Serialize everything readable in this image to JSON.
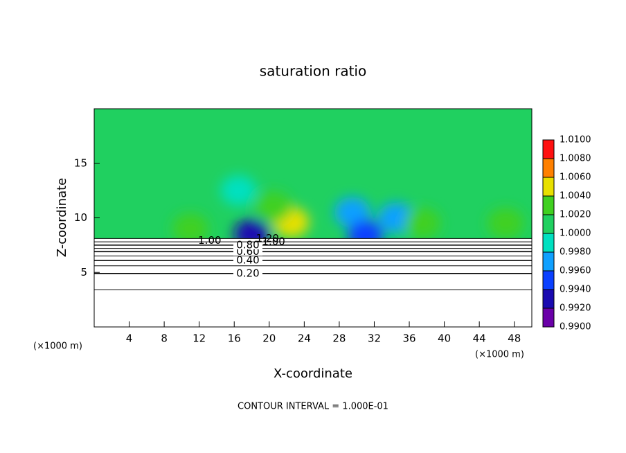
{
  "chart_data": {
    "type": "contour",
    "title": "saturation ratio",
    "xlabel": "X-coordinate",
    "ylabel": "Z-coordinate",
    "x_unit": "(×1000 m)",
    "y_unit": "(×1000 m)",
    "footnote": "CONTOUR INTERVAL = 1.000E-01",
    "xlim": [
      0,
      50
    ],
    "ylim": [
      0,
      20
    ],
    "xticks": [
      4,
      8,
      12,
      16,
      20,
      24,
      28,
      32,
      36,
      40,
      44,
      48
    ],
    "yticks": [
      5,
      10,
      15
    ],
    "background_value": 1.001,
    "colorbar": {
      "lim": [
        0.99,
        1.01
      ],
      "ticks": [
        {
          "value": 0.99,
          "label": "0.9900"
        },
        {
          "value": 0.992,
          "label": "0.9920"
        },
        {
          "value": 0.994,
          "label": "0.9940"
        },
        {
          "value": 0.996,
          "label": "0.9960"
        },
        {
          "value": 0.998,
          "label": "0.9980"
        },
        {
          "value": 1,
          "label": "1.0000"
        },
        {
          "value": 1.002,
          "label": "1.0020"
        },
        {
          "value": 1.004,
          "label": "1.0040"
        },
        {
          "value": 1.006,
          "label": "1.0060"
        },
        {
          "value": 1.008,
          "label": "1.0080"
        },
        {
          "value": 1.01,
          "label": "1.0100"
        }
      ],
      "colors": [
        "#6a00a8",
        "#1a0ab0",
        "#0a40ff",
        "#10a0ff",
        "#00e0c0",
        "#20d060",
        "#40d020",
        "#e8e000",
        "#ff8000",
        "#ff1010",
        "#ff9090"
      ]
    },
    "field_patches": [
      {
        "x": 22.5,
        "z": 9.6,
        "value": 1.005
      },
      {
        "x": 20.5,
        "z": 11,
        "value": 1.003
      },
      {
        "x": 18,
        "z": 8.5,
        "value": 0.993
      },
      {
        "x": 29.5,
        "z": 10.5,
        "value": 0.997
      },
      {
        "x": 34.5,
        "z": 10,
        "value": 0.996
      },
      {
        "x": 16.5,
        "z": 12.5,
        "value": 0.9985
      },
      {
        "x": 37.5,
        "z": 9.5,
        "value": 1.003
      },
      {
        "x": 47,
        "z": 9.5,
        "value": 1.003
      },
      {
        "x": 11,
        "z": 9,
        "value": 1.003
      },
      {
        "x": 31,
        "z": 8.4,
        "value": 0.994
      }
    ],
    "contours": [
      {
        "level": 0.1,
        "z": 3.4
      },
      {
        "level": 0.2,
        "z": 4.9,
        "label": "0.20"
      },
      {
        "level": 0.3,
        "z": 5.6
      },
      {
        "level": 0.4,
        "z": 6.1,
        "label": "0.40"
      },
      {
        "level": 0.5,
        "z": 6.5
      },
      {
        "level": 0.6,
        "z": 6.9,
        "label": "0.60"
      },
      {
        "level": 0.7,
        "z": 7.2
      },
      {
        "level": 0.8,
        "z": 7.5,
        "label": "0.80"
      },
      {
        "level": 0.9,
        "z": 7.8
      },
      {
        "level": 1,
        "z": 8.1
      }
    ],
    "contour_labels": [
      {
        "text": "1.00",
        "x": 13.2,
        "z": 7.9
      },
      {
        "text": "1.20",
        "x": 19.8,
        "z": 8.1
      },
      {
        "text": "1.00",
        "x": 20.5,
        "z": 7.8
      }
    ]
  }
}
